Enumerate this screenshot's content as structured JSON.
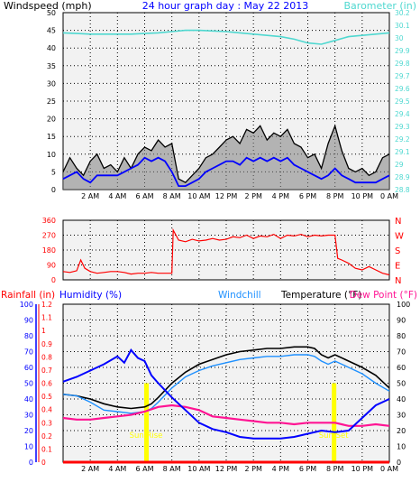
{
  "colors": {
    "window_bg": "#ffffff",
    "plot_bg": "#f2f2f2",
    "frame": "#000000",
    "grid": "#000000",
    "wind_gust": "#000000",
    "wind_avg": "#0000ff",
    "wind_speed": "#808080",
    "barometer": "#4fd8d0",
    "direction": "#ff0000",
    "temperature": "#000000",
    "dew_point": "#ff1493",
    "humidity": "#0000ff",
    "windchill": "#1e90ff",
    "rainfall": "#ff0000",
    "sun_marker": "#ffff00",
    "title": "#0000ff"
  },
  "top_panel": {
    "left_label": "Windspeed (mph)",
    "title": "24 hour graph day : May 22 2013",
    "right_label": "Barometer (in)",
    "left_ticks": [
      "0",
      "5",
      "10",
      "15",
      "20",
      "25",
      "30",
      "35",
      "40",
      "45",
      "50"
    ],
    "right_ticks": [
      "28.8",
      "28.9",
      "29",
      "29.1",
      "29.2",
      "29.3",
      "29.4",
      "29.5",
      "29.6",
      "29.7",
      "29.8",
      "29.9",
      "30",
      "30.1",
      "30.2"
    ],
    "x_ticks": [
      "2 AM",
      "4 AM",
      "6 AM",
      "8 AM",
      "10 AM",
      "12 PM",
      "2 PM",
      "4 PM",
      "6 PM",
      "8 PM",
      "10 PM",
      "0 AM"
    ]
  },
  "middle_panel": {
    "left_ticks": [
      "0",
      "90",
      "180",
      "270",
      "360"
    ],
    "right_labels": [
      "N",
      "W",
      "S",
      "E",
      "N"
    ]
  },
  "bottom_panel": {
    "label_rainfall": "Rainfall (in)",
    "label_humidity": "Humidity (%)",
    "label_windchill": "Windchill",
    "label_temperature": "Temperature (°F)",
    "label_dewpoint": "Dew Point (°F)",
    "rain_ticks": [
      "0",
      "0.1",
      "0.2",
      "0.3",
      "0.4",
      "0.5",
      "0.6",
      "0.7",
      "0.8",
      "0.9",
      "1",
      "1.1",
      "1.2"
    ],
    "humidity_ticks": [
      "0",
      "10",
      "20",
      "30",
      "40",
      "50",
      "60",
      "70",
      "80",
      "90",
      "100"
    ],
    "temp_ticks": [
      "0",
      "10",
      "20",
      "30",
      "40",
      "50",
      "60",
      "70",
      "80",
      "90",
      "100"
    ],
    "x_ticks": [
      "2 AM",
      "4 AM",
      "6 AM",
      "8 AM",
      "10 AM",
      "12 PM",
      "2 PM",
      "4 PM",
      "6 PM",
      "8 PM",
      "10 PM",
      "0 AM"
    ],
    "sunrise_label": "Sun Rise",
    "sunset_label": "Sun Set"
  },
  "chart_data": [
    {
      "type": "line",
      "title": "24 hour graph day : May 22 2013",
      "ylabel": "Windspeed (mph)",
      "y2label": "Barometer (in)",
      "x_unit": "hours since 0 AM",
      "xlim": [
        0,
        24
      ],
      "ylim": [
        0,
        50
      ],
      "y2lim": [
        28.8,
        30.2
      ],
      "series": [
        {
          "name": "Gust",
          "axis": "left",
          "x": [
            0,
            0.5,
            1,
            1.5,
            2,
            2.5,
            3,
            3.5,
            4,
            4.5,
            5,
            5.5,
            6,
            6.5,
            7,
            7.5,
            8,
            8.5,
            9,
            9.5,
            10,
            10.5,
            11,
            11.5,
            12,
            12.5,
            13,
            13.5,
            14,
            14.5,
            15,
            15.5,
            16,
            16.5,
            17,
            17.5,
            18,
            18.5,
            19,
            19.5,
            20,
            20.5,
            21,
            21.5,
            22,
            22.5,
            23,
            23.5,
            24
          ],
          "y": [
            5,
            9,
            6,
            4,
            8,
            10,
            6,
            7,
            5,
            9,
            6,
            10,
            12,
            11,
            14,
            12,
            13,
            3,
            2,
            4,
            6,
            9,
            10,
            12,
            14,
            15,
            13,
            17,
            16,
            18,
            14,
            16,
            15,
            17,
            13,
            12,
            9,
            10,
            6,
            13,
            18,
            11,
            6,
            5,
            6,
            4,
            5,
            9,
            10
          ]
        },
        {
          "name": "Average",
          "axis": "left",
          "x": [
            0,
            0.5,
            1,
            1.5,
            2,
            2.5,
            3,
            3.5,
            4,
            4.5,
            5,
            5.5,
            6,
            6.5,
            7,
            7.5,
            8,
            8.5,
            9,
            9.5,
            10,
            10.5,
            11,
            11.5,
            12,
            12.5,
            13,
            13.5,
            14,
            14.5,
            15,
            15.5,
            16,
            16.5,
            17,
            17.5,
            18,
            18.5,
            19,
            19.5,
            20,
            20.5,
            21,
            21.5,
            22,
            22.5,
            23,
            23.5,
            24
          ],
          "y": [
            3,
            4,
            5,
            3,
            2,
            4,
            4,
            4,
            4,
            5,
            6,
            7,
            9,
            8,
            9,
            8,
            5,
            1,
            1,
            2,
            3,
            5,
            6,
            7,
            8,
            8,
            7,
            9,
            8,
            9,
            8,
            9,
            8,
            9,
            7,
            6,
            5,
            4,
            3,
            4,
            6,
            4,
            3,
            2,
            2,
            2,
            2,
            3,
            4
          ]
        },
        {
          "name": "Barometer",
          "axis": "right",
          "x": [
            0,
            1,
            2,
            3,
            4,
            5,
            6,
            7,
            8,
            9,
            10,
            11,
            12,
            13,
            14,
            15,
            16,
            17,
            18,
            19,
            20,
            21,
            22,
            23,
            24
          ],
          "y": [
            30.04,
            30.035,
            30.03,
            30.03,
            30.03,
            30.03,
            30.035,
            30.04,
            30.05,
            30.06,
            30.06,
            30.055,
            30.05,
            30.04,
            30.03,
            30.02,
            30.01,
            29.99,
            29.96,
            29.95,
            29.98,
            30.01,
            30.02,
            30.03,
            30.04
          ]
        }
      ]
    },
    {
      "type": "line",
      "ylabel": "Wind direction",
      "ylim": [
        0,
        360
      ],
      "x_unit": "hours since 0 AM",
      "xlim": [
        0,
        24
      ],
      "series": [
        {
          "name": "Direction",
          "x": [
            0,
            0.5,
            1,
            1.3,
            1.6,
            2,
            2.5,
            3,
            3.5,
            4,
            4.5,
            5,
            5.5,
            6,
            6.5,
            7,
            7.5,
            8,
            8.1,
            8.5,
            9,
            9.5,
            10,
            10.5,
            11,
            11.5,
            12,
            12.5,
            13,
            13.5,
            14,
            14.5,
            15,
            15.5,
            16,
            16.5,
            17,
            17.5,
            18,
            18.5,
            19,
            19.5,
            20,
            20.2,
            20.5,
            21,
            21.5,
            22,
            22.5,
            23,
            23.5,
            24
          ],
          "y": [
            50,
            45,
            55,
            120,
            70,
            50,
            40,
            45,
            50,
            50,
            45,
            35,
            40,
            40,
            45,
            40,
            40,
            40,
            300,
            240,
            230,
            245,
            235,
            240,
            250,
            240,
            245,
            260,
            255,
            270,
            250,
            265,
            260,
            275,
            250,
            270,
            265,
            275,
            260,
            270,
            265,
            270,
            270,
            130,
            120,
            100,
            70,
            60,
            80,
            60,
            40,
            30
          ]
        }
      ]
    },
    {
      "type": "line",
      "ylabel": "Temperature (°F)",
      "y2label": "Humidity (%)",
      "y3label": "Rainfall (in)",
      "x_unit": "hours since 0 AM",
      "xlim": [
        0,
        24
      ],
      "ylim": [
        0,
        100
      ],
      "y2lim": [
        0,
        100
      ],
      "y3lim": [
        0,
        1.2
      ],
      "series": [
        {
          "name": "Temperature",
          "axis": "temp",
          "x": [
            0,
            1,
            2,
            3,
            4,
            5,
            6,
            6.5,
            7,
            8,
            9,
            10,
            11,
            12,
            13,
            14,
            15,
            16,
            17,
            18,
            18.5,
            19,
            19.5,
            20,
            21,
            22,
            23,
            24
          ],
          "y": [
            43,
            42,
            40,
            37,
            35,
            34,
            35,
            37,
            41,
            50,
            57,
            62,
            65,
            68,
            70,
            71,
            72,
            72,
            73,
            73,
            72,
            68,
            66,
            68,
            64,
            60,
            55,
            47
          ]
        },
        {
          "name": "Windchill",
          "axis": "temp",
          "x": [
            0,
            1,
            2,
            3,
            4,
            5,
            6,
            6.5,
            7,
            8,
            9,
            10,
            11,
            12,
            13,
            14,
            15,
            16,
            17,
            18,
            18.5,
            19,
            19.5,
            20,
            21,
            22,
            23,
            24
          ],
          "y": [
            43,
            42,
            38,
            33,
            32,
            31,
            32,
            34,
            38,
            47,
            54,
            58,
            61,
            63,
            65,
            66,
            67,
            67,
            68,
            68,
            67,
            64,
            62,
            64,
            60,
            56,
            50,
            45
          ]
        },
        {
          "name": "Dew Point",
          "axis": "temp",
          "x": [
            0,
            1,
            2,
            3,
            4,
            5,
            6,
            7,
            8,
            9,
            10,
            11,
            12,
            13,
            14,
            15,
            16,
            17,
            18,
            19,
            20,
            21,
            22,
            23,
            24
          ],
          "y": [
            28,
            27,
            27,
            28,
            29,
            30,
            32,
            35,
            36,
            35,
            33,
            29,
            28,
            27,
            26,
            25,
            25,
            24,
            25,
            25,
            25,
            23,
            23,
            24,
            23
          ]
        },
        {
          "name": "Humidity",
          "axis": "humidity",
          "x": [
            0,
            1,
            2,
            3,
            4,
            4.5,
            5,
            5.5,
            6,
            6.5,
            7,
            8,
            9,
            10,
            11,
            12,
            13,
            14,
            15,
            16,
            17,
            18,
            19,
            20,
            21,
            22,
            23,
            24
          ],
          "y": [
            51,
            54,
            58,
            62,
            67,
            63,
            71,
            66,
            64,
            55,
            50,
            41,
            33,
            25,
            21,
            19,
            16,
            15,
            15,
            15,
            16,
            18,
            20,
            19,
            20,
            28,
            36,
            40
          ]
        },
        {
          "name": "Rainfall",
          "axis": "rain",
          "x": [
            0,
            24
          ],
          "y": [
            0,
            0
          ]
        }
      ],
      "markers": [
        {
          "name": "Sun Rise",
          "x": 6.1
        },
        {
          "name": "Sun Set",
          "x": 19.9
        }
      ]
    }
  ]
}
